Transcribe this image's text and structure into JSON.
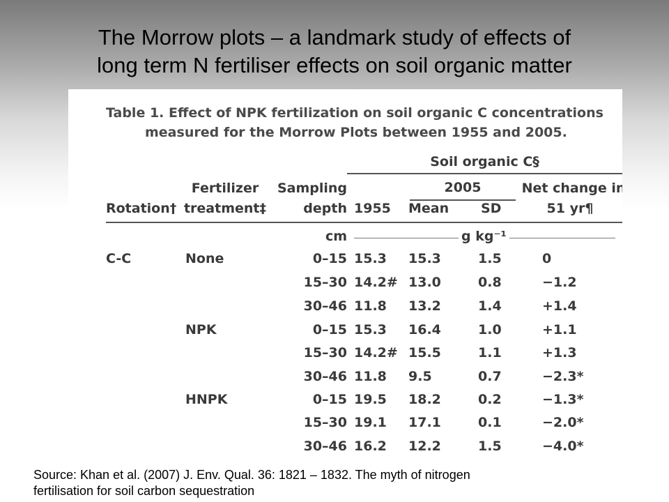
{
  "slide": {
    "title_line1": "The Morrow plots – a landmark study of effects of",
    "title_line2": "long term N fertiliser effects on soil organic matter",
    "source_line1": "Source: Khan et al. (2007) J. Env. Qual. 36: 1821 – 1832. The myth of nitrogen",
    "source_line2": "fertilisation for soil carbon sequestration"
  },
  "table": {
    "caption_line1": "Table 1. Effect of NPK fertilization on soil organic C concentrations",
    "caption_line2": "measured for the Morrow Plots between 1955 and 2005.",
    "group_header": "Soil organic C§",
    "subgroup_header": "2005",
    "headers": {
      "rotation": "Rotation†",
      "fert_line1": "Fertilizer",
      "fert_line2": "treatment‡",
      "depth_line1": "Sampling",
      "depth_line2": "depth",
      "y1955": "1955",
      "mean": "Mean",
      "sd": "SD",
      "net_line1": "Net change in",
      "net_line2": "51 yr¶"
    },
    "units": {
      "depth": "cm",
      "values": "g kg⁻¹"
    },
    "rows": [
      {
        "rotation": "C-C",
        "treatment": "None",
        "depth": "0–15",
        "y1955": "15.3",
        "mean": "15.3",
        "sd": "1.5",
        "net": "0"
      },
      {
        "rotation": "",
        "treatment": "",
        "depth": "15–30",
        "y1955": "14.2#",
        "mean": "13.0",
        "sd": "0.8",
        "net": "−1.2"
      },
      {
        "rotation": "",
        "treatment": "",
        "depth": "30–46",
        "y1955": "11.8",
        "mean": "13.2",
        "sd": "1.4",
        "net": "+1.4"
      },
      {
        "rotation": "",
        "treatment": "NPK",
        "depth": "0–15",
        "y1955": "15.3",
        "mean": "16.4",
        "sd": "1.0",
        "net": "+1.1"
      },
      {
        "rotation": "",
        "treatment": "",
        "depth": "15–30",
        "y1955": "14.2#",
        "mean": "15.5",
        "sd": "1.1",
        "net": "+1.3"
      },
      {
        "rotation": "",
        "treatment": "",
        "depth": "30–46",
        "y1955": "11.8",
        "mean": "9.5",
        "sd": "0.7",
        "net": "−2.3*"
      },
      {
        "rotation": "",
        "treatment": "HNPK",
        "depth": "0–15",
        "y1955": "19.5",
        "mean": "18.2",
        "sd": "0.2",
        "net": "−1.3*"
      },
      {
        "rotation": "",
        "treatment": "",
        "depth": "15–30",
        "y1955": "19.1",
        "mean": "17.1",
        "sd": "0.1",
        "net": "−2.0*"
      },
      {
        "rotation": "",
        "treatment": "",
        "depth": "30–46",
        "y1955": "16.2",
        "mean": "12.2",
        "sd": "1.5",
        "net": "−4.0*"
      }
    ]
  }
}
